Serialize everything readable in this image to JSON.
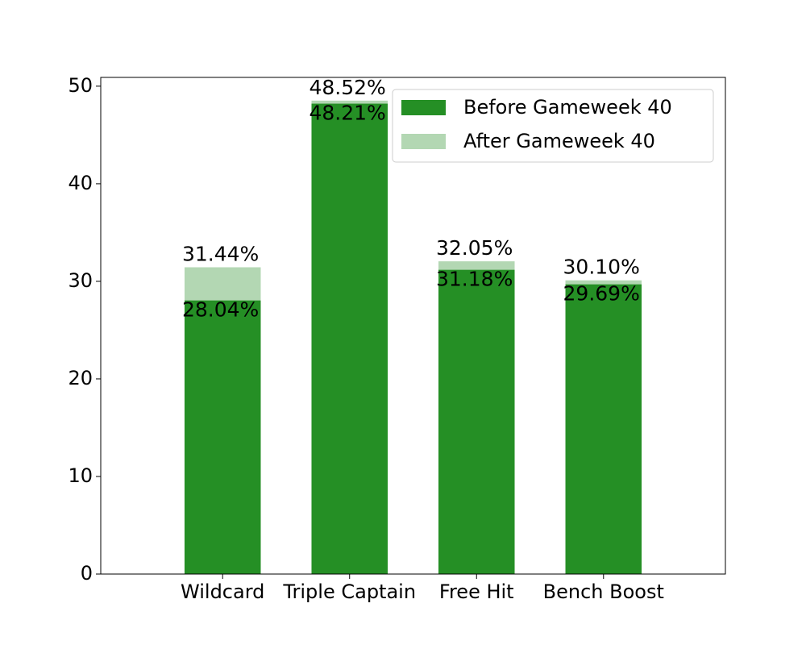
{
  "chart_data": {
    "type": "bar",
    "categories": [
      "Wildcard",
      "Triple Captain",
      "Free Hit",
      "Bench Boost"
    ],
    "series": [
      {
        "name": "Before Gameweek 40",
        "color": "#258f25",
        "values": [
          28.04,
          48.21,
          31.18,
          29.69
        ],
        "value_labels": [
          "28.04%",
          "48.21%",
          "31.18%",
          "29.69%"
        ]
      },
      {
        "name": "After Gameweek 40",
        "color": "#b3d7b3",
        "values": [
          31.44,
          48.52,
          32.05,
          30.1
        ],
        "value_labels": [
          "31.44%",
          "48.52%",
          "32.05%",
          "30.10%"
        ]
      }
    ],
    "ylim": [
      0,
      50.9
    ],
    "yticks": [
      0,
      10,
      20,
      30,
      40,
      50
    ],
    "grid": false,
    "legend": "upper right"
  }
}
